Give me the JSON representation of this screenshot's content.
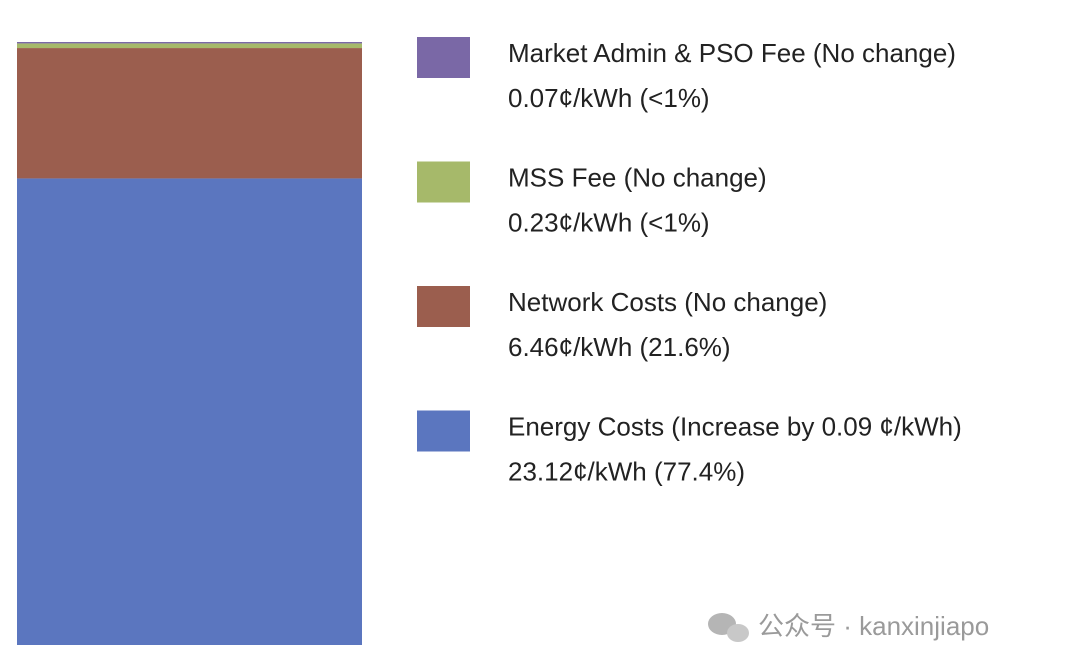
{
  "chart_data": {
    "type": "bar",
    "stacked": true,
    "categories": [
      null
    ],
    "series": [
      {
        "name": "Energy Costs (Increase by 0.09 ¢/kWh)",
        "color": "#5b76bf",
        "values": [
          23.12
        ],
        "value_labels": [
          "23.12¢/kWh (77.4%)"
        ]
      },
      {
        "name": "Network Costs (No change)",
        "color": "#9b5e4e",
        "values": [
          6.46
        ],
        "value_labels": [
          "6.46¢/kWh (21.6%)"
        ]
      },
      {
        "name": "MSS Fee (No change)",
        "color": "#a6b96a",
        "values": [
          0.23
        ],
        "value_labels": [
          "0.23¢/kWh (<1%)"
        ]
      },
      {
        "name": "Market Admin & PSO Fee (No change)",
        "color": "#7a68a6",
        "values": [
          0.07
        ],
        "value_labels": [
          "0.07¢/kWh (<1%)"
        ]
      }
    ],
    "watermark": "公众号 · kanxinjiapo"
  }
}
